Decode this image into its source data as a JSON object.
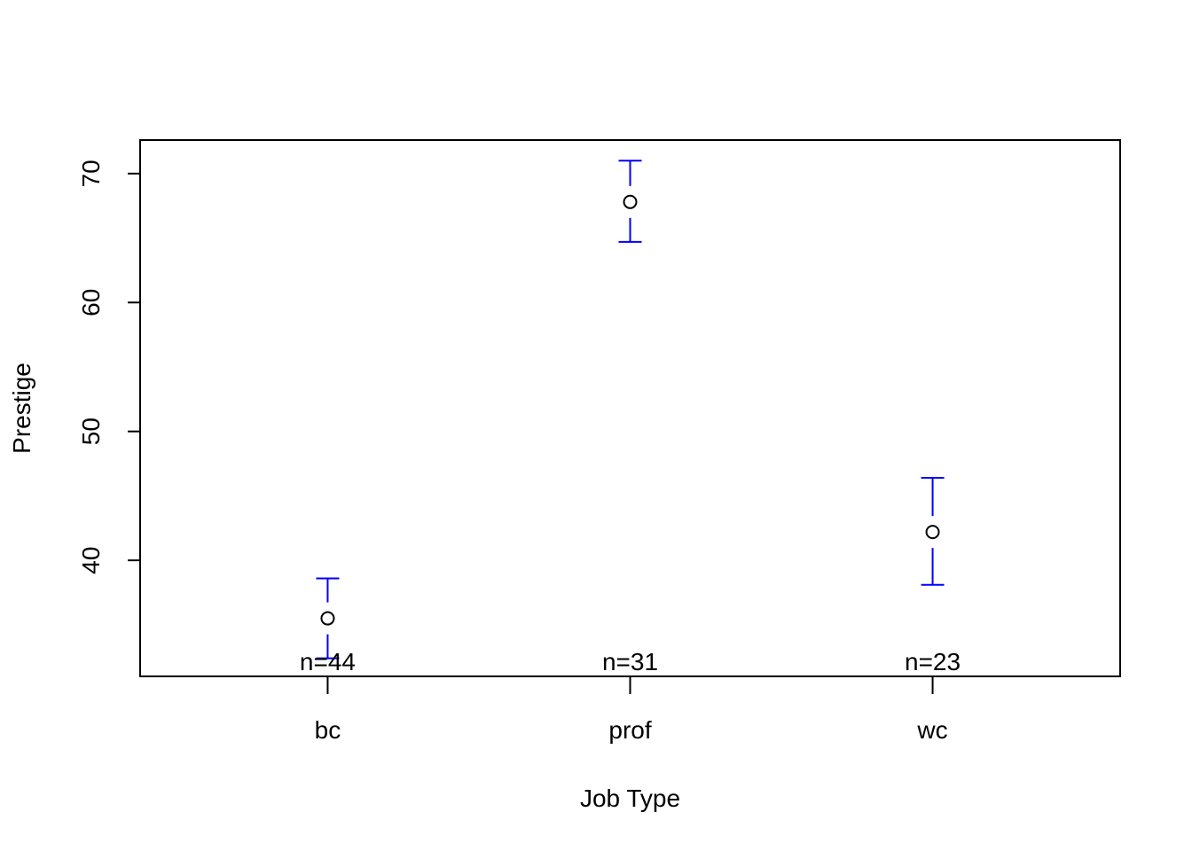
{
  "chart_data": {
    "type": "scatter",
    "subtype": "means-with-error-bars",
    "title": "",
    "xlabel": "Job Type",
    "ylabel": "Prestige",
    "categories": [
      "bc",
      "prof",
      "wc"
    ],
    "means": [
      35.5,
      67.8,
      42.2
    ],
    "lower": [
      32.4,
      64.7,
      38.1
    ],
    "upper": [
      38.6,
      71.0,
      46.4
    ],
    "counts": [
      "n=44",
      "n=31",
      "n=23"
    ],
    "y_ticks": [
      40,
      50,
      60,
      70
    ],
    "y_tick_labels": [
      "40",
      "50",
      "60",
      "70"
    ],
    "ylim": [
      31.0,
      72.6
    ],
    "xlim": [
      0.38,
      3.62
    ],
    "grid": false,
    "legend": "none",
    "colors": {
      "error_bar": "#0000FF",
      "point": "#000000",
      "axis": "#000000"
    }
  }
}
